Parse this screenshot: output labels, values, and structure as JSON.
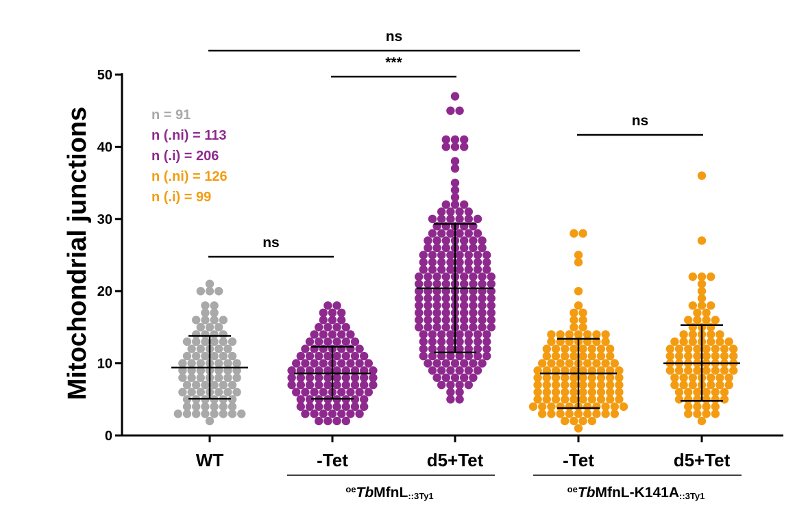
{
  "chart_data": {
    "type": "scatter",
    "ylabel": "Mitochondrial junctions",
    "ylim": [
      0,
      50
    ],
    "yticks": [
      0,
      10,
      20,
      30,
      40,
      50
    ],
    "categories": [
      "WT",
      "-Tet",
      "d5+Tet",
      "-Tet",
      "d5+Tet"
    ],
    "group_labels": [
      {
        "prefix": "oe",
        "italic": "Tb",
        "main": "MfnL",
        "suffix": "::3Ty1"
      },
      {
        "prefix": "oe",
        "italic": "Tb",
        "main": "MfnL-K141A",
        "suffix": "::3Ty1"
      }
    ],
    "legend": [
      {
        "text": "n = 91",
        "color": "#a9a9a9"
      },
      {
        "text": "n (.ni) = 113",
        "color": "#8e2a8e"
      },
      {
        "text": "n (.i) = 206",
        "color": "#8e2a8e"
      },
      {
        "text": "n (.ni) = 126",
        "color": "#f39c12"
      },
      {
        "text": "n (.i) = 99",
        "color": "#f39c12"
      }
    ],
    "series": [
      {
        "color": "#a9a9a9",
        "n": 91,
        "mean": 9.4,
        "sd_low": 5.1,
        "sd_high": 13.8,
        "values": [
          2,
          3,
          3,
          3,
          3,
          3,
          3,
          3,
          3,
          4,
          4,
          4,
          4,
          4,
          4,
          5,
          5,
          5,
          5,
          5,
          5,
          6,
          6,
          6,
          6,
          6,
          6,
          6,
          7,
          7,
          7,
          7,
          7,
          7,
          8,
          8,
          8,
          8,
          8,
          8,
          8,
          9,
          9,
          9,
          9,
          9,
          9,
          9,
          10,
          10,
          10,
          10,
          10,
          10,
          10,
          11,
          11,
          11,
          11,
          11,
          11,
          12,
          12,
          12,
          12,
          12,
          13,
          13,
          13,
          13,
          13,
          13,
          14,
          14,
          14,
          14,
          15,
          15,
          15,
          16,
          16,
          16,
          16,
          17,
          17,
          18,
          18,
          20,
          20,
          20,
          21
        ]
      },
      {
        "color": "#8e2a8e",
        "n": 113,
        "mean": 8.6,
        "sd_low": 5.1,
        "sd_high": 12.3,
        "values": [
          2,
          2,
          2,
          2,
          3,
          3,
          3,
          3,
          3,
          3,
          3,
          4,
          4,
          4,
          4,
          4,
          4,
          4,
          4,
          5,
          5,
          5,
          5,
          5,
          5,
          5,
          5,
          6,
          6,
          6,
          6,
          6,
          6,
          6,
          6,
          6,
          7,
          7,
          7,
          7,
          7,
          7,
          7,
          7,
          7,
          7,
          8,
          8,
          8,
          8,
          8,
          8,
          8,
          8,
          8,
          8,
          9,
          9,
          9,
          9,
          9,
          9,
          9,
          9,
          9,
          9,
          10,
          10,
          10,
          10,
          10,
          10,
          10,
          10,
          10,
          11,
          11,
          11,
          11,
          11,
          11,
          11,
          11,
          12,
          12,
          12,
          12,
          12,
          12,
          12,
          13,
          13,
          13,
          13,
          13,
          13,
          14,
          14,
          14,
          14,
          14,
          15,
          15,
          15,
          15,
          16,
          16,
          16,
          17,
          17,
          17,
          18,
          18
        ]
      },
      {
        "color": "#8e2a8e",
        "n": 206,
        "mean": 20.4,
        "sd_low": 11.5,
        "sd_high": 29.3,
        "values": [
          5,
          5,
          6,
          6,
          7,
          7,
          7,
          7,
          8,
          8,
          8,
          8,
          8,
          9,
          9,
          9,
          9,
          9,
          9,
          10,
          10,
          10,
          10,
          10,
          10,
          10,
          11,
          11,
          11,
          11,
          11,
          11,
          11,
          11,
          12,
          12,
          12,
          12,
          12,
          12,
          12,
          12,
          13,
          13,
          13,
          13,
          13,
          13,
          13,
          13,
          14,
          14,
          14,
          14,
          14,
          14,
          14,
          14,
          15,
          15,
          15,
          15,
          15,
          15,
          15,
          15,
          15,
          16,
          16,
          16,
          16,
          16,
          16,
          16,
          16,
          16,
          17,
          17,
          17,
          17,
          17,
          17,
          17,
          17,
          17,
          18,
          18,
          18,
          18,
          18,
          18,
          18,
          18,
          18,
          19,
          19,
          19,
          19,
          19,
          19,
          19,
          19,
          19,
          20,
          20,
          20,
          20,
          20,
          20,
          20,
          20,
          20,
          21,
          21,
          21,
          21,
          21,
          21,
          21,
          21,
          21,
          22,
          22,
          22,
          22,
          22,
          22,
          22,
          22,
          22,
          23,
          23,
          23,
          23,
          23,
          23,
          23,
          23,
          24,
          24,
          24,
          24,
          24,
          24,
          24,
          24,
          25,
          25,
          25,
          25,
          25,
          25,
          25,
          25,
          26,
          26,
          26,
          26,
          26,
          26,
          26,
          27,
          27,
          27,
          27,
          27,
          27,
          27,
          28,
          28,
          28,
          28,
          28,
          28,
          29,
          29,
          29,
          29,
          29,
          30,
          30,
          30,
          30,
          30,
          30,
          31,
          31,
          31,
          31,
          32,
          32,
          32,
          33,
          34,
          35,
          37,
          38,
          40,
          40,
          40,
          41,
          41,
          41,
          45,
          45,
          47
        ]
      },
      {
        "color": "#f39c12",
        "n": 126,
        "mean": 8.6,
        "sd_low": 3.8,
        "sd_high": 13.4,
        "values": [
          1,
          2,
          2,
          2,
          2,
          3,
          3,
          3,
          3,
          3,
          3,
          3,
          3,
          3,
          4,
          4,
          4,
          4,
          4,
          4,
          4,
          4,
          4,
          4,
          4,
          5,
          5,
          5,
          5,
          5,
          5,
          5,
          5,
          5,
          5,
          6,
          6,
          6,
          6,
          6,
          6,
          6,
          6,
          6,
          6,
          7,
          7,
          7,
          7,
          7,
          7,
          7,
          7,
          7,
          7,
          8,
          8,
          8,
          8,
          8,
          8,
          8,
          8,
          8,
          8,
          9,
          9,
          9,
          9,
          9,
          9,
          9,
          9,
          9,
          9,
          10,
          10,
          10,
          10,
          10,
          10,
          10,
          10,
          10,
          11,
          11,
          11,
          11,
          11,
          11,
          11,
          11,
          12,
          12,
          12,
          12,
          12,
          12,
          12,
          12,
          13,
          13,
          13,
          13,
          13,
          13,
          13,
          14,
          14,
          14,
          14,
          14,
          14,
          14,
          15,
          15,
          16,
          16,
          17,
          17,
          18,
          20,
          24,
          25,
          28,
          28
        ]
      },
      {
        "color": "#f39c12",
        "n": 99,
        "mean": 10.0,
        "sd_low": 4.8,
        "sd_high": 15.3,
        "values": [
          2,
          3,
          3,
          3,
          3,
          4,
          4,
          4,
          4,
          5,
          5,
          5,
          5,
          5,
          5,
          6,
          6,
          6,
          6,
          6,
          6,
          7,
          7,
          7,
          7,
          7,
          7,
          7,
          8,
          8,
          8,
          8,
          8,
          8,
          8,
          9,
          9,
          9,
          9,
          9,
          9,
          9,
          9,
          10,
          10,
          10,
          10,
          10,
          10,
          10,
          10,
          11,
          11,
          11,
          11,
          11,
          11,
          11,
          11,
          12,
          12,
          12,
          12,
          12,
          12,
          12,
          12,
          13,
          13,
          13,
          13,
          13,
          13,
          13,
          14,
          14,
          14,
          14,
          14,
          15,
          15,
          15,
          16,
          16,
          16,
          16,
          17,
          17,
          18,
          18,
          19,
          20,
          21,
          22,
          22,
          22,
          27,
          36,
          18
        ]
      }
    ],
    "significance": [
      {
        "label": "ns",
        "from": 0,
        "to": 1,
        "level": "low"
      },
      {
        "label": "***",
        "from": 1,
        "to": 2,
        "level": "mid"
      },
      {
        "label": "ns",
        "from": 3,
        "to": 4,
        "level": "mid2"
      },
      {
        "label": "ns",
        "from": 0,
        "to": 3,
        "level": "top"
      }
    ]
  }
}
